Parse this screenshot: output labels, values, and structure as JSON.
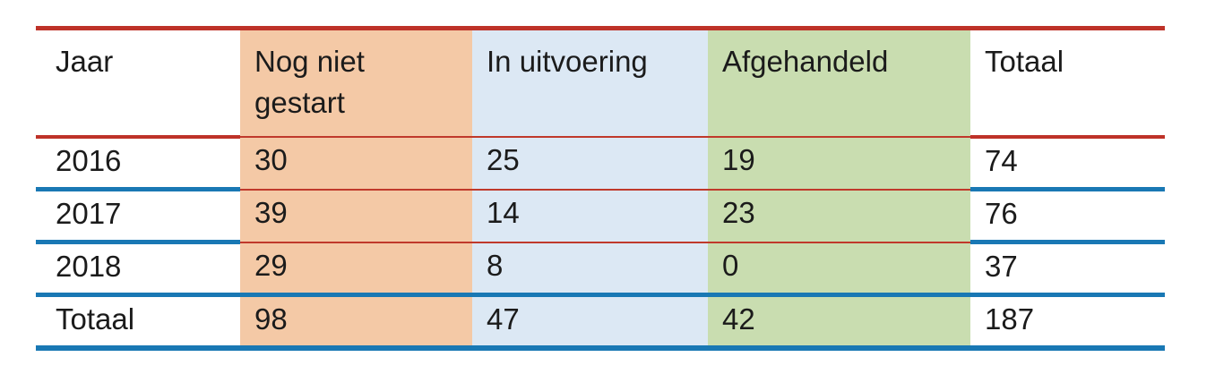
{
  "colors": {
    "red_rule": "#be3228",
    "blue_rule": "#1978b4",
    "orange_column_bg": "#f4c9a6",
    "blue_column_bg": "#dce8f4",
    "green_column_bg": "#c9ddb0",
    "text": "#1b1b1b"
  },
  "chart_data": {
    "type": "table",
    "title": "",
    "columns": [
      "Jaar",
      "Nog niet gestart",
      "In uitvoering",
      "Afgehandeld",
      "Totaal"
    ],
    "rows": [
      [
        "2016",
        "30",
        "25",
        "19",
        "74"
      ],
      [
        "2017",
        "39",
        "14",
        "23",
        "76"
      ],
      [
        "2018",
        "29",
        "8",
        "0",
        "37"
      ],
      [
        "Totaal",
        "98",
        "47",
        "42",
        "187"
      ]
    ]
  }
}
